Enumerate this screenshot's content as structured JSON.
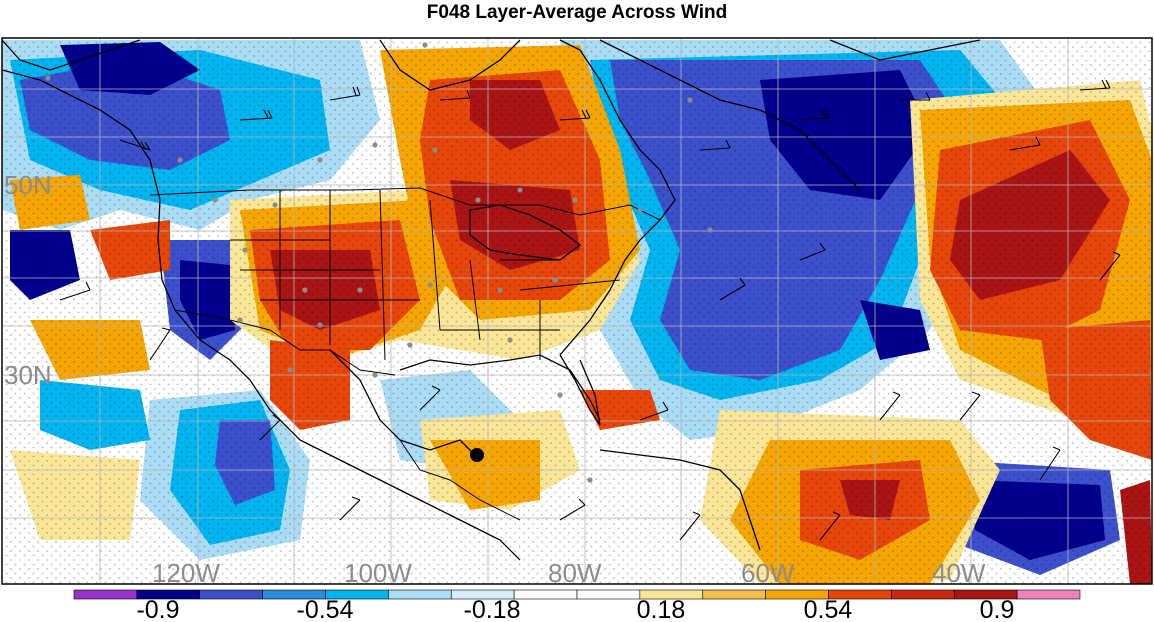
{
  "title": "F048 Layer-Average Across Wind",
  "colors": {
    "deep_purple": "#9933cc",
    "navy": "#00008c",
    "royal_blue": "#3c50cc",
    "sky_blue": "#00b4f0",
    "light_blue": "#aadcf5",
    "white": "#ffffff",
    "light_yellow": "#fae696",
    "orange_yellow": "#f5a500",
    "orange_red": "#e6460a",
    "dark_red": "#aa1414",
    "pink": "#ee82bb",
    "coast": "#000000",
    "label_gray": "#8c8c8c"
  },
  "lat_labels": [
    "50N",
    "30N"
  ],
  "lon_labels": [
    "120W",
    "100W",
    "80W",
    "60W",
    "40W"
  ],
  "colorbar": {
    "labels": [
      "-0.9",
      "-0.54",
      "-0.18",
      "0.18",
      "0.54",
      "0.9"
    ],
    "bins": [
      "#9933cc",
      "#00008c",
      "#3c50cc",
      "#2a8cdc",
      "#00b4f0",
      "#aadcf5",
      "#d6eefa",
      "#ffffff",
      "#ffffff",
      "#fae696",
      "#f5c04a",
      "#f5a500",
      "#e6460a",
      "#cc2a10",
      "#aa1414",
      "#ee82bb"
    ]
  },
  "marker": {
    "name": "storm-center-dot"
  }
}
